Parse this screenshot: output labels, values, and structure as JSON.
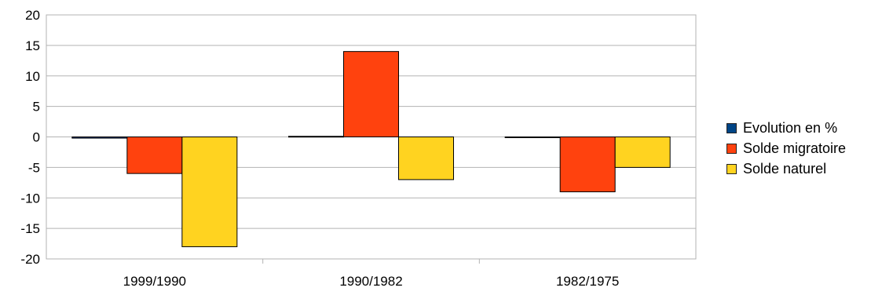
{
  "chart_data": {
    "type": "bar",
    "title": "",
    "xlabel": "",
    "ylabel": "",
    "categories": [
      "1999/1990",
      "1990/1982",
      "1982/1975"
    ],
    "series": [
      {
        "name": "Evolution en %",
        "color": "#004586",
        "values": [
          -0.2,
          0.1,
          -0.1
        ]
      },
      {
        "name": "Solde migratoire",
        "color": "#FF420E",
        "values": [
          -6,
          14,
          -9
        ]
      },
      {
        "name": "Solde naturel",
        "color": "#FFD320",
        "values": [
          -18,
          -7,
          -5
        ]
      }
    ],
    "ylim": [
      -20,
      20
    ],
    "yticks": [
      -20,
      -15,
      -10,
      -5,
      0,
      5,
      10,
      15,
      20
    ],
    "grid": "horizontal",
    "legend_position": "right"
  }
}
